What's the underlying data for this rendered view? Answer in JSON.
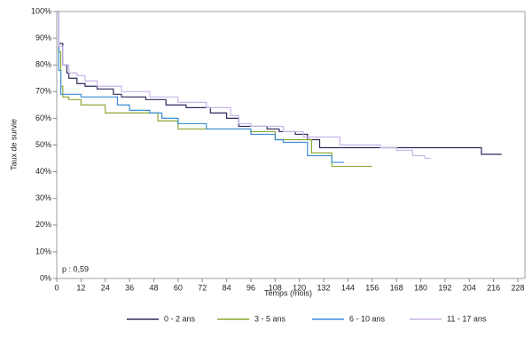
{
  "chart_data": {
    "type": "step",
    "xlabel": "Temps (mois)",
    "ylabel": "Taux de survie",
    "annotation": "p : 0,59",
    "xlim": [
      0,
      228
    ],
    "xticks": [
      0,
      12,
      24,
      36,
      48,
      60,
      72,
      84,
      96,
      108,
      120,
      132,
      144,
      156,
      168,
      180,
      192,
      204,
      216,
      228
    ],
    "ylim": [
      0,
      100
    ],
    "yticks": [
      {
        "value": 0,
        "label": "0%"
      },
      {
        "value": 10,
        "label": "10%"
      },
      {
        "value": 20,
        "label": "20%"
      },
      {
        "value": 30,
        "label": "30%"
      },
      {
        "value": 40,
        "label": "40%"
      },
      {
        "value": 50,
        "label": "50%"
      },
      {
        "value": 60,
        "label": "60%"
      },
      {
        "value": 70,
        "label": "70%"
      },
      {
        "value": 80,
        "label": "80%"
      },
      {
        "value": 90,
        "label": "90%"
      },
      {
        "value": 100,
        "label": "100%"
      }
    ],
    "series": [
      {
        "name": "0 - 2 ans",
        "color": "#2b2a5c",
        "x": [
          0,
          1,
          3,
          5,
          6,
          10,
          14,
          20,
          28,
          32,
          44,
          54,
          64,
          76,
          84,
          90,
          104,
          110,
          118,
          124,
          130,
          204,
          210,
          220
        ],
        "values": [
          100,
          88,
          80,
          77,
          75,
          73,
          72,
          71,
          69,
          68,
          67,
          65,
          64,
          62,
          60,
          57,
          56,
          55,
          54,
          52,
          49,
          49,
          46.5,
          46.5
        ]
      },
      {
        "name": "3 - 5 ans",
        "color": "#8aa832",
        "x": [
          0,
          1,
          2,
          3,
          6,
          12,
          24,
          42,
          50,
          60,
          88,
          96,
          108,
          120,
          126,
          132,
          136,
          156
        ],
        "values": [
          100,
          85,
          72,
          68,
          67,
          65,
          62,
          62,
          59,
          56,
          56,
          55,
          52,
          52,
          47,
          47,
          42,
          42
        ]
      },
      {
        "name": "6 - 10 ans",
        "color": "#3a8fd6",
        "x": [
          0,
          1,
          2,
          12,
          28,
          30,
          36,
          46,
          52,
          60,
          72,
          74,
          92,
          96,
          108,
          112,
          124,
          132,
          136,
          142
        ],
        "values": [
          100,
          78,
          69,
          68,
          68,
          65,
          63,
          62,
          60,
          58,
          58,
          56,
          56,
          54,
          52,
          51,
          46,
          46,
          43.5,
          43.5
        ]
      },
      {
        "name": "11 - 17 ans",
        "color": "#c9b3e8",
        "x": [
          0,
          1,
          3,
          6,
          10,
          14,
          20,
          32,
          46,
          60,
          74,
          86,
          90,
          96,
          112,
          122,
          140,
          160,
          168,
          176,
          182,
          185
        ],
        "values": [
          100,
          87,
          80,
          77,
          76,
          74,
          72,
          70,
          68,
          66,
          64,
          61,
          58,
          57,
          55,
          53,
          50,
          49,
          48,
          46,
          45,
          45
        ]
      }
    ]
  }
}
